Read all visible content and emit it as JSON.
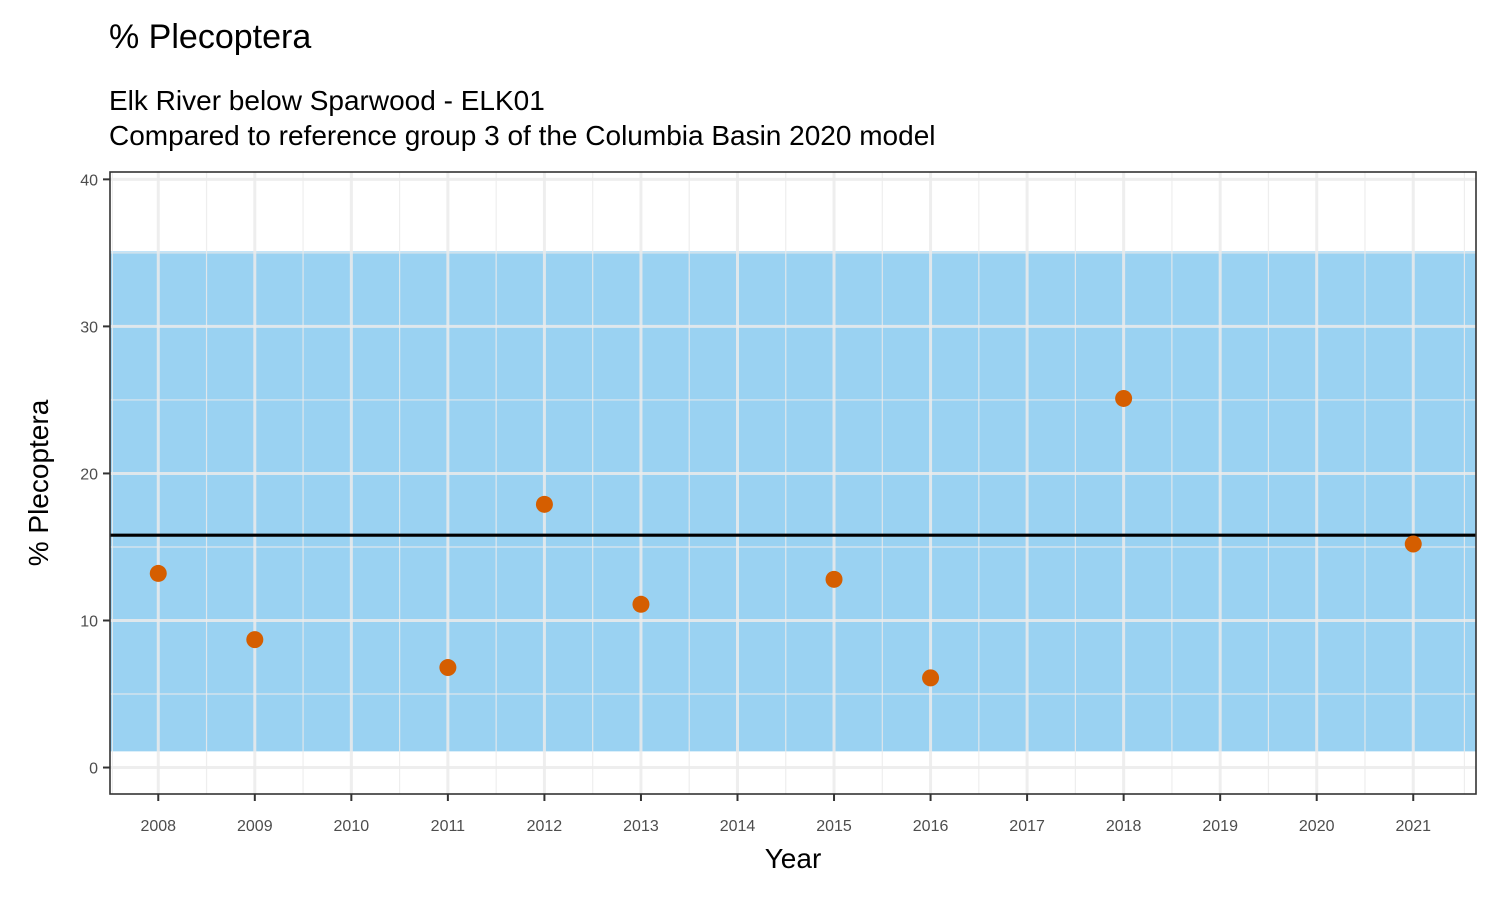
{
  "chart_data": {
    "type": "scatter",
    "title": "% Plecoptera",
    "subtitle_lines": [
      "Elk River below Sparwood - ELK01",
      "Compared to reference group 3 of the Columbia Basin 2020 model"
    ],
    "xlabel": "Year",
    "ylabel": "% Plecoptera",
    "xlim": [
      2007.5,
      2021.65
    ],
    "ylim": [
      -1.8,
      40.5
    ],
    "x_ticks": [
      2008,
      2009,
      2010,
      2011,
      2012,
      2013,
      2014,
      2015,
      2016,
      2017,
      2018,
      2019,
      2020,
      2021
    ],
    "y_ticks": [
      0,
      10,
      20,
      30,
      40
    ],
    "grid": true,
    "series": [
      {
        "x": [
          2008,
          2009,
          2011,
          2012,
          2013,
          2015,
          2016,
          2018,
          2021
        ],
        "y": [
          13.2,
          8.7,
          6.8,
          17.9,
          11.1,
          12.8,
          6.1,
          25.1,
          15.2
        ],
        "color": "#D55E00"
      }
    ],
    "reference_band": {
      "lower": 1.1,
      "upper": 35.1,
      "color": "#56B4E9"
    },
    "reference_line": {
      "y": 15.8,
      "color": "#000000"
    }
  }
}
